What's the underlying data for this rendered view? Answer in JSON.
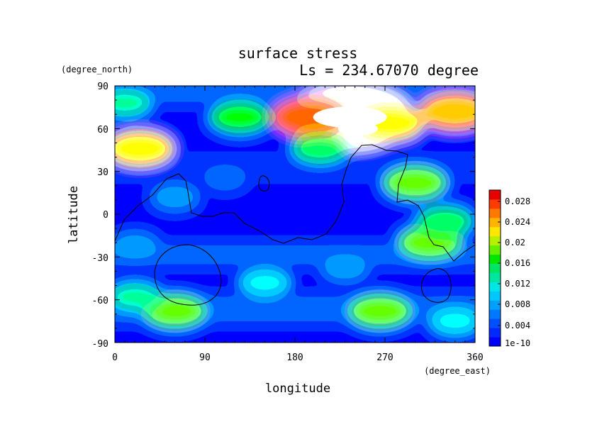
{
  "chart_data": {
    "type": "heatmap",
    "title": "surface stress",
    "subtitle": "Ls = 234.67070 degree",
    "xlabel": "longitude",
    "ylabel": "latitude",
    "x_unit": "(degree_east)",
    "y_unit": "(degree_north)",
    "xlim": [
      0,
      360
    ],
    "ylim": [
      -90,
      90
    ],
    "x_ticks": [
      "0",
      "90",
      "180",
      "270",
      "360"
    ],
    "y_ticks": [
      "90",
      "60",
      "30",
      "0",
      "-30",
      "-60",
      "-90"
    ],
    "colorbar": {
      "levels": [
        "0.028",
        "0.024",
        "0.02",
        "0.016",
        "0.012",
        "0.008",
        "0.004",
        "1e-10"
      ],
      "colors": [
        "#0000ff",
        "#0028ff",
        "#0050ff",
        "#0078ff",
        "#00a0ff",
        "#00c8ff",
        "#00e6e6",
        "#00e6a0",
        "#00e664",
        "#00e600",
        "#64f000",
        "#b4f000",
        "#ffe600",
        "#ffb400",
        "#ff7800",
        "#ff3c00",
        "#e60000"
      ]
    },
    "grid": false,
    "stress_features": [
      {
        "lon": 235,
        "lat": 68,
        "value": 0.05
      },
      {
        "lon": 340,
        "lat": 72,
        "value": 0.022
      },
      {
        "lon": 195,
        "lat": 68,
        "value": 0.024
      },
      {
        "lon": 275,
        "lat": 64,
        "value": 0.02
      },
      {
        "lon": 125,
        "lat": 68,
        "value": 0.016
      },
      {
        "lon": 25,
        "lat": 46,
        "value": 0.02
      },
      {
        "lon": 10,
        "lat": 78,
        "value": 0.012
      },
      {
        "lon": 205,
        "lat": 46,
        "value": 0.014
      },
      {
        "lon": 300,
        "lat": 22,
        "value": 0.018
      },
      {
        "lon": 315,
        "lat": -20,
        "value": 0.018
      },
      {
        "lon": 330,
        "lat": -5,
        "value": 0.014
      },
      {
        "lon": 60,
        "lat": -68,
        "value": 0.018
      },
      {
        "lon": 265,
        "lat": -68,
        "value": 0.018
      },
      {
        "lon": 20,
        "lat": -58,
        "value": 0.012
      },
      {
        "lon": 150,
        "lat": -48,
        "value": 0.01
      },
      {
        "lon": 340,
        "lat": -75,
        "value": 0.01
      },
      {
        "lon": 60,
        "lat": 12,
        "value": 0.008
      },
      {
        "lon": 110,
        "lat": 25,
        "value": 0.006
      },
      {
        "lon": 20,
        "lat": -22,
        "value": 0.008
      },
      {
        "lon": 230,
        "lat": -38,
        "value": 0.008
      }
    ]
  }
}
